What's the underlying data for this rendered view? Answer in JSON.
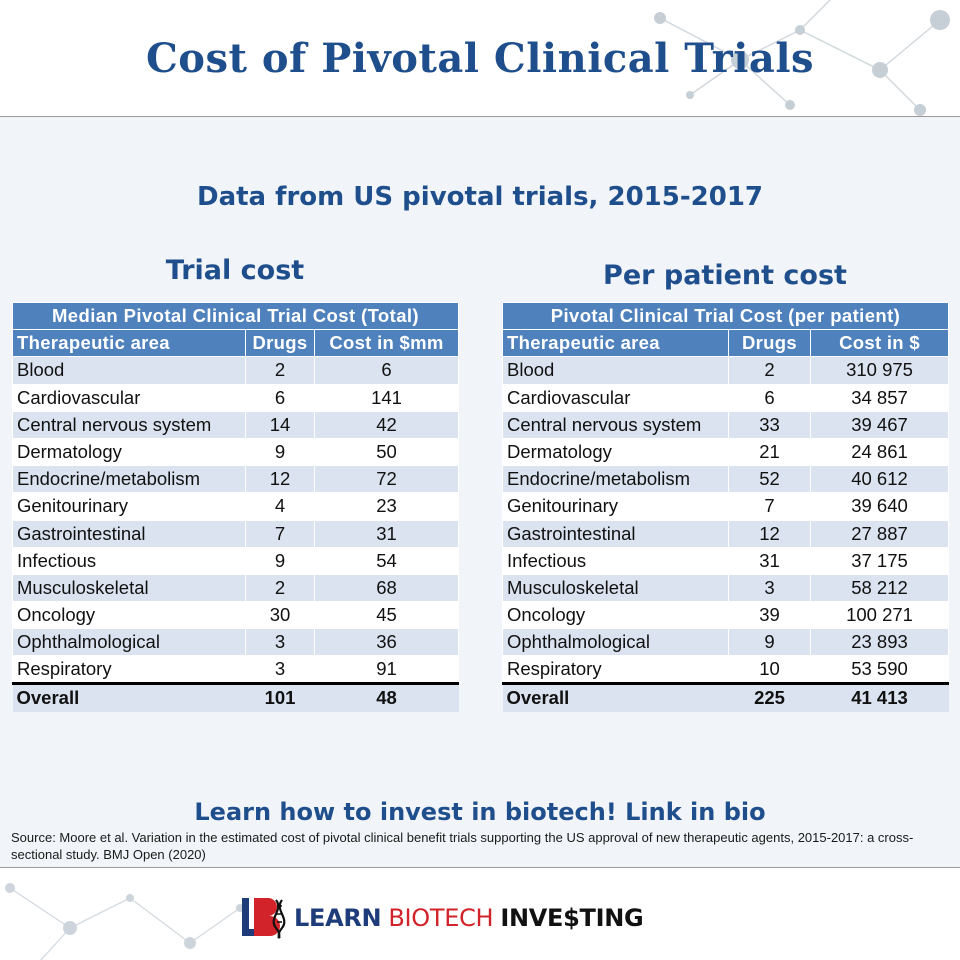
{
  "title": "Cost of Pivotal Clinical Trials",
  "subtitle": "Data from US pivotal trials, 2015-2017",
  "left": {
    "section_title": "Trial cost",
    "caption": "Median Pivotal Clinical Trial Cost (Total)",
    "columns": [
      "Therapeutic area",
      "Drugs",
      "Cost in $mm"
    ],
    "rows": [
      {
        "area": "Blood",
        "drugs": "2",
        "cost": "6"
      },
      {
        "area": "Cardiovascular",
        "drugs": "6",
        "cost": "141"
      },
      {
        "area": "Central nervous system",
        "drugs": "14",
        "cost": "42"
      },
      {
        "area": "Dermatology",
        "drugs": "9",
        "cost": "50"
      },
      {
        "area": "Endocrine/metabolism",
        "drugs": "12",
        "cost": "72"
      },
      {
        "area": "Genitourinary",
        "drugs": "4",
        "cost": "23"
      },
      {
        "area": "Gastrointestinal",
        "drugs": "7",
        "cost": "31"
      },
      {
        "area": "Infectious",
        "drugs": "9",
        "cost": "54"
      },
      {
        "area": "Musculoskeletal",
        "drugs": "2",
        "cost": "68"
      },
      {
        "area": "Oncology",
        "drugs": "30",
        "cost": "45"
      },
      {
        "area": "Ophthalmological",
        "drugs": "3",
        "cost": "36"
      },
      {
        "area": "Respiratory",
        "drugs": "3",
        "cost": "91"
      }
    ],
    "overall": {
      "area": "Overall",
      "drugs": "101",
      "cost": "48"
    }
  },
  "right": {
    "section_title": "Per patient cost",
    "caption": "Pivotal Clinical Trial Cost (per patient)",
    "columns": [
      "Therapeutic area",
      "Drugs",
      "Cost in $"
    ],
    "rows": [
      {
        "area": "Blood",
        "drugs": "2",
        "cost": "310 975"
      },
      {
        "area": "Cardiovascular",
        "drugs": "6",
        "cost": "34 857"
      },
      {
        "area": "Central nervous system",
        "drugs": "33",
        "cost": "39 467"
      },
      {
        "area": "Dermatology",
        "drugs": "21",
        "cost": "24 861"
      },
      {
        "area": "Endocrine/metabolism",
        "drugs": "52",
        "cost": "40 612"
      },
      {
        "area": "Genitourinary",
        "drugs": "7",
        "cost": "39 640"
      },
      {
        "area": "Gastrointestinal",
        "drugs": "12",
        "cost": "27 887"
      },
      {
        "area": "Infectious",
        "drugs": "31",
        "cost": "37 175"
      },
      {
        "area": "Musculoskeletal",
        "drugs": "3",
        "cost": "58 212"
      },
      {
        "area": "Oncology",
        "drugs": "39",
        "cost": "100 271"
      },
      {
        "area": "Ophthalmological",
        "drugs": "9",
        "cost": "23 893"
      },
      {
        "area": "Respiratory",
        "drugs": "10",
        "cost": "53 590"
      }
    ],
    "overall": {
      "area": "Overall",
      "drugs": "225",
      "cost": "41 413"
    }
  },
  "cta": "Learn how to invest in biotech! Link in bio",
  "source": "Source: Moore et al. Variation in the estimated cost of pivotal clinical benefit trials supporting the US approval of new therapeutic agents, 2015-2017: a cross-sectional study. BMJ Open (2020)",
  "brand": {
    "logo_icon": "lbi-dna-logo-icon",
    "word1": "LEARN",
    "word2": "BIOTECH",
    "word3": "INVE$TING"
  },
  "colors": {
    "title_blue": "#1f4e8c",
    "table_header": "#4f81bd",
    "row_stripe": "#dbe3f0",
    "panel_bg": "#f1f4f8",
    "brand_red": "#d2232a",
    "brand_navy": "#1f3c7a"
  }
}
